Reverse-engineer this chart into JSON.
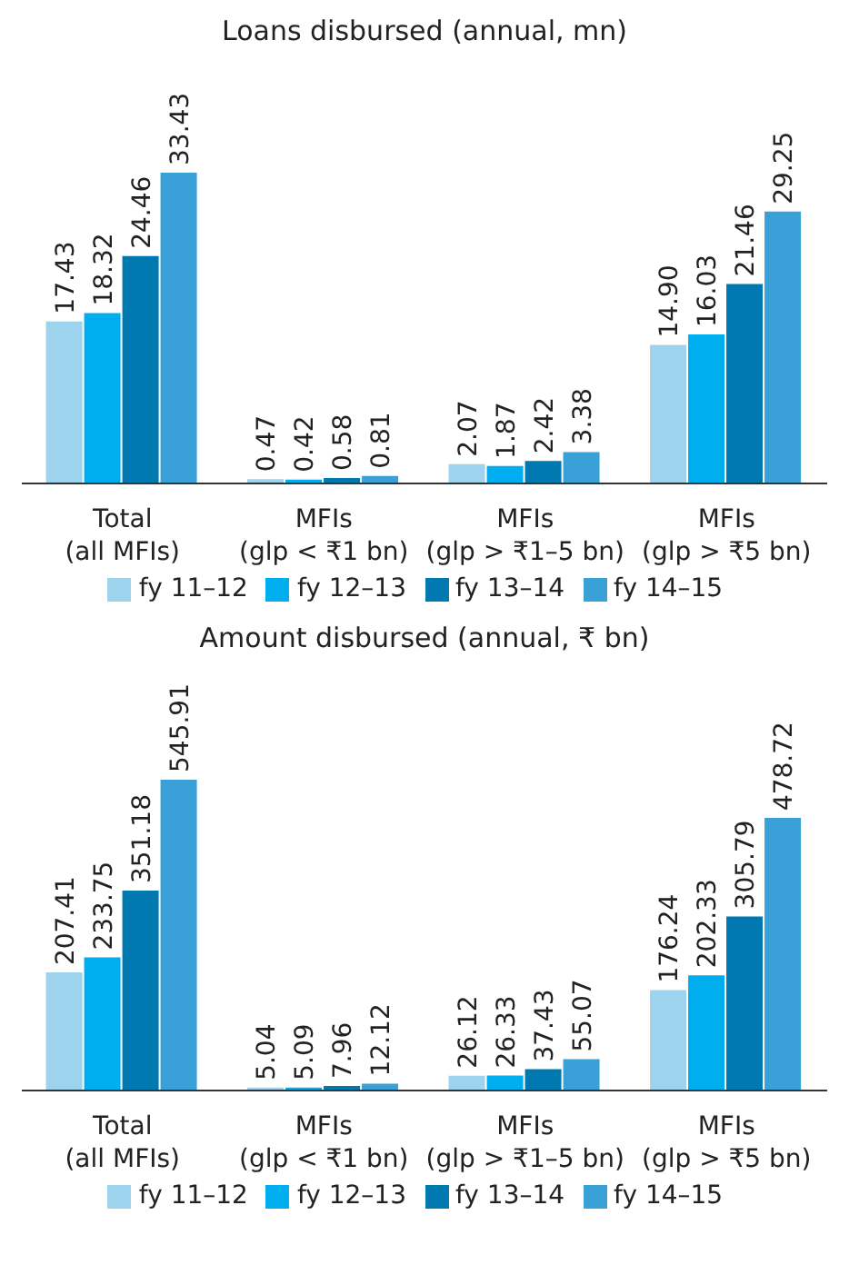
{
  "chart_data": [
    {
      "type": "bar",
      "title": "Loans disbursed (annual, mn)",
      "categories": [
        "Total\n(all MFIs)",
        "MFIs\n(glp < ₹1 bn)",
        "MFIs\n(glp > ₹1–5 bn)",
        "MFIs\n(glp > ₹5 bn)"
      ],
      "legend": "bottom",
      "series": [
        {
          "name": "fy 11–12",
          "color": "#9dd3ec",
          "values": [
            17.43,
            0.47,
            2.07,
            14.9
          ],
          "value_labels": [
            "17.43",
            "0.47",
            "2.07",
            "14.90"
          ]
        },
        {
          "name": "fy 12–13",
          "color": "#00aeef",
          "values": [
            18.32,
            0.42,
            1.87,
            16.03
          ],
          "value_labels": [
            "18.32",
            "0.42",
            "1.87",
            "16.03"
          ]
        },
        {
          "name": "fy 13–14",
          "color": "#0079b0",
          "values": [
            24.46,
            0.58,
            2.42,
            21.46
          ],
          "value_labels": [
            "24.46",
            "0.58",
            "2.42",
            "21.46"
          ]
        },
        {
          "name": "fy 14–15",
          "color": "#3aa0d8",
          "values": [
            33.43,
            0.81,
            3.38,
            29.25
          ],
          "value_labels": [
            "33.43",
            "0.81",
            "3.38",
            "29.25"
          ]
        }
      ]
    },
    {
      "type": "bar",
      "title": "Amount disbursed (annual, ₹ bn)",
      "categories": [
        "Total\n(all MFIs)",
        "MFIs\n(glp < ₹1 bn)",
        "MFIs\n(glp > ₹1–5 bn)",
        "MFIs\n(glp > ₹5 bn)"
      ],
      "legend": "bottom",
      "series": [
        {
          "name": "fy 11–12",
          "color": "#9dd3ec",
          "values": [
            207.41,
            5.04,
            26.12,
            176.24
          ],
          "value_labels": [
            "207.41",
            "5.04",
            "26.12",
            "176.24"
          ]
        },
        {
          "name": "fy 12–13",
          "color": "#00aeef",
          "values": [
            233.75,
            5.09,
            26.33,
            202.33
          ],
          "value_labels": [
            "233.75",
            "5.09",
            "26.33",
            "202.33"
          ]
        },
        {
          "name": "fy 13–14",
          "color": "#0079b0",
          "values": [
            351.18,
            7.96,
            37.43,
            305.79
          ],
          "value_labels": [
            "351.18",
            "7.96",
            "37.43",
            "305.79"
          ]
        },
        {
          "name": "fy 14–15",
          "color": "#3aa0d8",
          "values": [
            545.91,
            12.12,
            55.07,
            478.72
          ],
          "value_labels": [
            "545.91",
            "12.12",
            "55.07",
            "478.72"
          ]
        }
      ]
    }
  ]
}
